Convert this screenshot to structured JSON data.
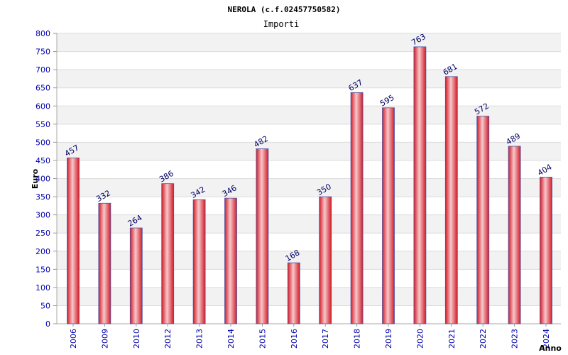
{
  "chart_data": {
    "type": "bar",
    "title": "NEROLA (c.f.02457750582)",
    "subtitle": "Importi",
    "xlabel": "Anno",
    "ylabel": "Euro",
    "ylim": [
      0,
      800
    ],
    "ytick_step": 50,
    "categories": [
      "2006",
      "2009",
      "2010",
      "2012",
      "2013",
      "2014",
      "2015",
      "2016",
      "2017",
      "2018",
      "2019",
      "2020",
      "2021",
      "2022",
      "2023",
      "2024"
    ],
    "values": [
      457,
      332,
      264,
      386,
      342,
      346,
      482,
      168,
      350,
      637,
      595,
      763,
      681,
      572,
      489,
      404
    ],
    "grid": true,
    "legend": "none",
    "colors": {
      "bar": "#e8202a",
      "bar_highlight": "#f6c8cc",
      "bar_edge": "#4a55a8",
      "band_alt": "#f2f2f2",
      "tick_text": "#0000aa",
      "value_text": "#000066"
    }
  }
}
